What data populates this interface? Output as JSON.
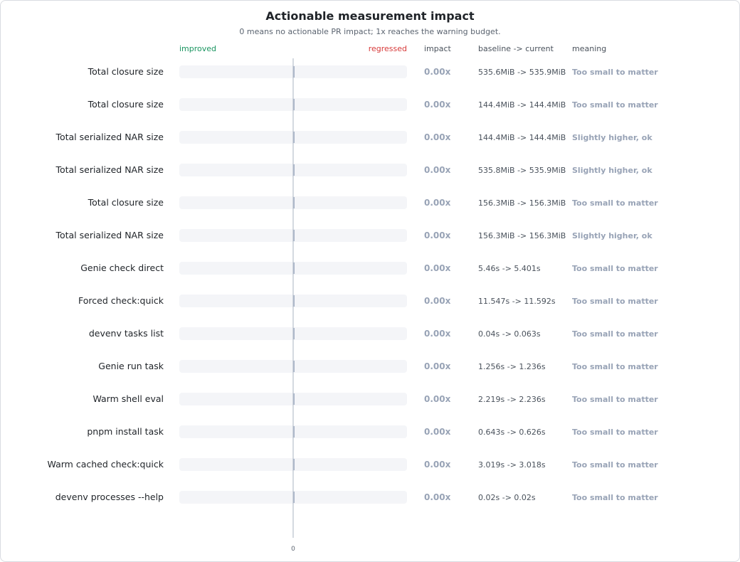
{
  "chart_data": {
    "type": "bar",
    "title": "Actionable measurement impact",
    "subtitle": "0 means no actionable PR impact; 1x reaches the warning budget.",
    "column_headers": {
      "improved": "improved",
      "regressed": "regressed",
      "impact": "impact",
      "baseline_current": "baseline -> current",
      "meaning": "meaning"
    },
    "x_tick_labels": [
      "0"
    ],
    "xlim": [
      -1,
      1
    ],
    "grid": false,
    "legend": "none",
    "colors": {
      "improved": "#1a9560",
      "regressed": "#d73a3a",
      "neutral": "#98a3b6"
    },
    "rows": [
      {
        "label": "Total closure size",
        "value": 0.0,
        "impact": "0.00x",
        "baseline_current": "535.6MiB -> 535.9MiB",
        "meaning": "Too small to matter"
      },
      {
        "label": "Total closure size",
        "value": 0.0,
        "impact": "0.00x",
        "baseline_current": "144.4MiB -> 144.4MiB",
        "meaning": "Too small to matter"
      },
      {
        "label": "Total serialized NAR size",
        "value": 0.0,
        "impact": "0.00x",
        "baseline_current": "144.4MiB -> 144.4MiB",
        "meaning": "Slightly higher, ok"
      },
      {
        "label": "Total serialized NAR size",
        "value": 0.0,
        "impact": "0.00x",
        "baseline_current": "535.8MiB -> 535.9MiB",
        "meaning": "Slightly higher, ok"
      },
      {
        "label": "Total closure size",
        "value": 0.0,
        "impact": "0.00x",
        "baseline_current": "156.3MiB -> 156.3MiB",
        "meaning": "Too small to matter"
      },
      {
        "label": "Total serialized NAR size",
        "value": 0.0,
        "impact": "0.00x",
        "baseline_current": "156.3MiB -> 156.3MiB",
        "meaning": "Slightly higher, ok"
      },
      {
        "label": "Genie check direct",
        "value": 0.0,
        "impact": "0.00x",
        "baseline_current": "5.46s -> 5.401s",
        "meaning": "Too small to matter"
      },
      {
        "label": "Forced check:quick",
        "value": 0.0,
        "impact": "0.00x",
        "baseline_current": "11.547s -> 11.592s",
        "meaning": "Too small to matter"
      },
      {
        "label": "devenv tasks list",
        "value": 0.0,
        "impact": "0.00x",
        "baseline_current": "0.04s -> 0.063s",
        "meaning": "Too small to matter"
      },
      {
        "label": "Genie run task",
        "value": 0.0,
        "impact": "0.00x",
        "baseline_current": "1.256s -> 1.236s",
        "meaning": "Too small to matter"
      },
      {
        "label": "Warm shell eval",
        "value": 0.0,
        "impact": "0.00x",
        "baseline_current": "2.219s -> 2.236s",
        "meaning": "Too small to matter"
      },
      {
        "label": "pnpm install task",
        "value": 0.0,
        "impact": "0.00x",
        "baseline_current": "0.643s -> 0.626s",
        "meaning": "Too small to matter"
      },
      {
        "label": "Warm cached check:quick",
        "value": 0.0,
        "impact": "0.00x",
        "baseline_current": "3.019s -> 3.018s",
        "meaning": "Too small to matter"
      },
      {
        "label": "devenv processes --help",
        "value": 0.0,
        "impact": "0.00x",
        "baseline_current": "0.02s -> 0.02s",
        "meaning": "Too small to matter"
      }
    ]
  }
}
